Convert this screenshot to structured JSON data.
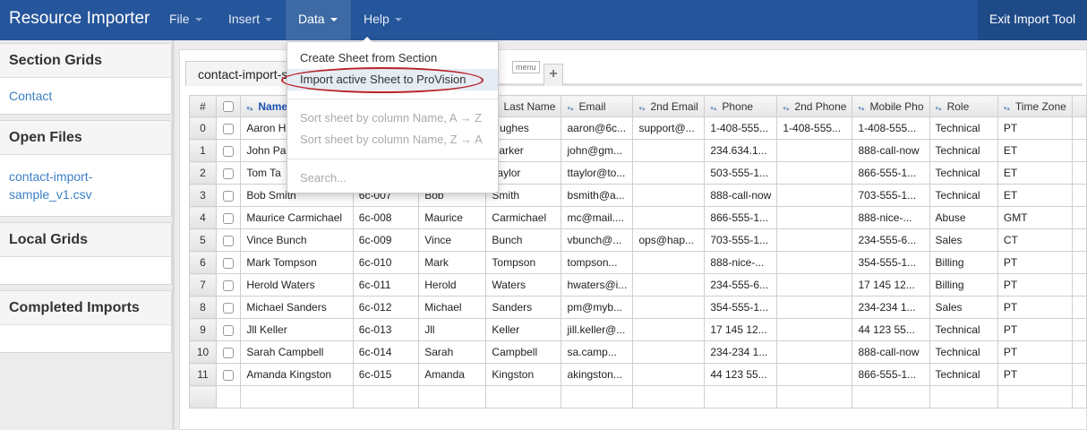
{
  "app": {
    "title": "Resource Importer",
    "exit_label": "Exit Import Tool"
  },
  "menus": [
    "File",
    "Insert",
    "Data",
    "Help"
  ],
  "active_menu": "Data",
  "sidebar": [
    {
      "title": "Section Grids",
      "items": [
        "Contact"
      ]
    },
    {
      "title": "Open Files",
      "items": [
        "contact-import-sample_v1.csv"
      ]
    },
    {
      "title": "Local Grids",
      "items": []
    },
    {
      "title": "Completed Imports",
      "items": []
    }
  ],
  "sheet": {
    "tab_label": "contact-import-s",
    "menu_tag": "menu",
    "add_label": "+"
  },
  "dropdown": {
    "items": [
      "Create Sheet from Section",
      "Import active Sheet to ProVision"
    ],
    "sort_items": [
      "Sort sheet by column Name, A → Z",
      "Sort sheet by column Name, Z → A"
    ],
    "search": "Search...",
    "highlight_color": "#b8232a"
  },
  "grid": {
    "headers": [
      "#",
      "",
      "Name",
      "",
      "",
      "Last Name",
      "Email",
      "2nd Email",
      "Phone",
      "2nd Phone",
      "Mobile Pho",
      "Role",
      "Time Zone"
    ],
    "rows": [
      [
        "0",
        "Aaron H",
        "",
        "",
        "Hughes",
        "aaron@6c...",
        "support@...",
        "1-408-555...",
        "1-408-555...",
        "1-408-555...",
        "Technical",
        "PT"
      ],
      [
        "1",
        "John Pa",
        "",
        "",
        "Parker",
        "john@gm...",
        "",
        "234.634.1...",
        "",
        "888-call-now",
        "Technical",
        "ET"
      ],
      [
        "2",
        "Tom Ta",
        "",
        "",
        "Taylor",
        "ttaylor@to...",
        "",
        "503-555-1...",
        "",
        "866-555-1...",
        "Technical",
        "ET"
      ],
      [
        "3",
        "Bob Smith",
        "6c-007",
        "Bob",
        "Smith",
        "bsmith@a...",
        "",
        "888-call-now",
        "",
        "703-555-1...",
        "Technical",
        "ET"
      ],
      [
        "4",
        "Maurice Carmichael",
        "6c-008",
        "Maurice",
        "Carmichael",
        "mc@mail....",
        "",
        "866-555-1...",
        "",
        "888-nice-...",
        "Abuse",
        "GMT"
      ],
      [
        "5",
        "Vince Bunch",
        "6c-009",
        "Vince",
        "Bunch",
        "vbunch@...",
        "ops@hap...",
        "703-555-1...",
        "",
        "234-555-6...",
        "Sales",
        "CT"
      ],
      [
        "6",
        "Mark Tompson",
        "6c-010",
        "Mark",
        "Tompson",
        "tompson...",
        "",
        "888-nice-...",
        "",
        "354-555-1...",
        "Billing",
        "PT"
      ],
      [
        "7",
        "Herold Waters",
        "6c-011",
        "Herold",
        "Waters",
        "hwaters@i...",
        "",
        "234-555-6...",
        "",
        "17 145 12...",
        "Billing",
        "PT"
      ],
      [
        "8",
        "Michael Sanders",
        "6c-012",
        "Michael",
        "Sanders",
        "pm@myb...",
        "",
        "354-555-1...",
        "",
        "234-234 1...",
        "Sales",
        "PT"
      ],
      [
        "9",
        "Jll Keller",
        "6c-013",
        "Jll",
        "Keller",
        "jill.keller@...",
        "",
        "17 145 12...",
        "",
        "44 123 55...",
        "Technical",
        "PT"
      ],
      [
        "10",
        "Sarah Campbell",
        "6c-014",
        "Sarah",
        "Campbell",
        "sa.camp...",
        "",
        "234-234 1...",
        "",
        "888-call-now",
        "Technical",
        "PT"
      ],
      [
        "11",
        "Amanda Kingston",
        "6c-015",
        "Amanda",
        "Kingston",
        "akingston...",
        "",
        "44 123 55...",
        "",
        "866-555-1...",
        "Technical",
        "PT"
      ]
    ]
  }
}
